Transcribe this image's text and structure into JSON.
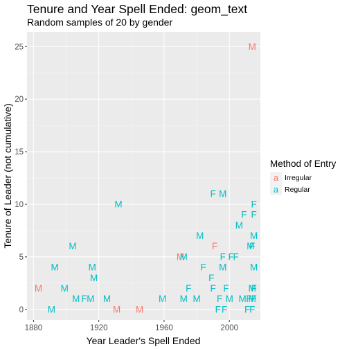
{
  "chart_data": {
    "type": "scatter",
    "geom": "text",
    "title": "Tenure and Year Spell Ended: geom_text",
    "subtitle": "Random samples of 20 by gender",
    "xlabel": "Year Leader's Spell Ended",
    "ylabel": "Tenure of Leader (not cumulative)",
    "xlim": [
      1876,
      2019
    ],
    "ylim": [
      -1,
      26.4
    ],
    "x_ticks": [
      1880,
      1920,
      1960,
      2000
    ],
    "y_ticks": [
      0,
      5,
      10,
      15,
      20,
      25
    ],
    "grid": true,
    "legend": {
      "title": "Method of Entry",
      "position": "right",
      "key_glyph": "a",
      "entries": [
        {
          "label": "Irregular",
          "color": "#F8766D"
        },
        {
          "label": "Regular",
          "color": "#00BFC4"
        }
      ]
    },
    "series": [
      {
        "name": "Irregular",
        "color": "#F8766D",
        "points": [
          {
            "x": 1883,
            "y": 2,
            "label": "M"
          },
          {
            "x": 1931,
            "y": 0,
            "label": "M"
          },
          {
            "x": 1945,
            "y": 0,
            "label": "M"
          },
          {
            "x": 1970,
            "y": 5,
            "label": "M"
          },
          {
            "x": 1991,
            "y": 6,
            "label": "F"
          },
          {
            "x": 2014,
            "y": 25,
            "label": "M"
          }
        ]
      },
      {
        "name": "Regular",
        "color": "#00BFC4",
        "points": [
          {
            "x": 1891,
            "y": 0,
            "label": "M"
          },
          {
            "x": 1893,
            "y": 4,
            "label": "M"
          },
          {
            "x": 1899,
            "y": 2,
            "label": "M"
          },
          {
            "x": 1904,
            "y": 6,
            "label": "M"
          },
          {
            "x": 1906,
            "y": 1,
            "label": "M"
          },
          {
            "x": 1911,
            "y": 1,
            "label": "F"
          },
          {
            "x": 1915,
            "y": 1,
            "label": "M"
          },
          {
            "x": 1916,
            "y": 4,
            "label": "M"
          },
          {
            "x": 1917,
            "y": 3,
            "label": "M"
          },
          {
            "x": 1925,
            "y": 1,
            "label": "M"
          },
          {
            "x": 1932,
            "y": 10,
            "label": "M"
          },
          {
            "x": 1959,
            "y": 1,
            "label": "M"
          },
          {
            "x": 1972,
            "y": 5,
            "label": "M"
          },
          {
            "x": 1972,
            "y": 1,
            "label": "M"
          },
          {
            "x": 1975,
            "y": 2,
            "label": "F"
          },
          {
            "x": 1980,
            "y": 1,
            "label": "M"
          },
          {
            "x": 1982,
            "y": 7,
            "label": "M"
          },
          {
            "x": 1984,
            "y": 4,
            "label": "F"
          },
          {
            "x": 1989,
            "y": 3,
            "label": "F"
          },
          {
            "x": 1990,
            "y": 11,
            "label": "F"
          },
          {
            "x": 1990,
            "y": 2,
            "label": "F"
          },
          {
            "x": 1993,
            "y": 0,
            "label": "F"
          },
          {
            "x": 1994,
            "y": 1,
            "label": "F"
          },
          {
            "x": 1996,
            "y": 11,
            "label": "M"
          },
          {
            "x": 1996,
            "y": 5,
            "label": "F"
          },
          {
            "x": 1996,
            "y": 4,
            "label": "M"
          },
          {
            "x": 1997,
            "y": 0,
            "label": "F"
          },
          {
            "x": 1998,
            "y": 2,
            "label": "F"
          },
          {
            "x": 2000,
            "y": 1,
            "label": "M"
          },
          {
            "x": 2001,
            "y": 5,
            "label": "F"
          },
          {
            "x": 2004,
            "y": 5,
            "label": "F"
          },
          {
            "x": 2006,
            "y": 8,
            "label": "M"
          },
          {
            "x": 2008,
            "y": 1,
            "label": "M"
          },
          {
            "x": 2009,
            "y": 9,
            "label": "F"
          },
          {
            "x": 2011,
            "y": 0,
            "label": "F"
          },
          {
            "x": 2012,
            "y": 1,
            "label": "F"
          },
          {
            "x": 2013,
            "y": 6,
            "label": "M"
          },
          {
            "x": 2014,
            "y": 6,
            "label": "F"
          },
          {
            "x": 2014,
            "y": 2,
            "label": "M"
          },
          {
            "x": 2014,
            "y": 1,
            "label": "M"
          },
          {
            "x": 2014,
            "y": 0,
            "label": "F"
          },
          {
            "x": 2015,
            "y": 10,
            "label": "F"
          },
          {
            "x": 2015,
            "y": 9,
            "label": "F"
          },
          {
            "x": 2015,
            "y": 7,
            "label": "M"
          },
          {
            "x": 2015,
            "y": 4,
            "label": "M"
          },
          {
            "x": 2015,
            "y": 2,
            "label": "F"
          },
          {
            "x": 2015,
            "y": 1,
            "label": "F"
          }
        ]
      }
    ]
  }
}
